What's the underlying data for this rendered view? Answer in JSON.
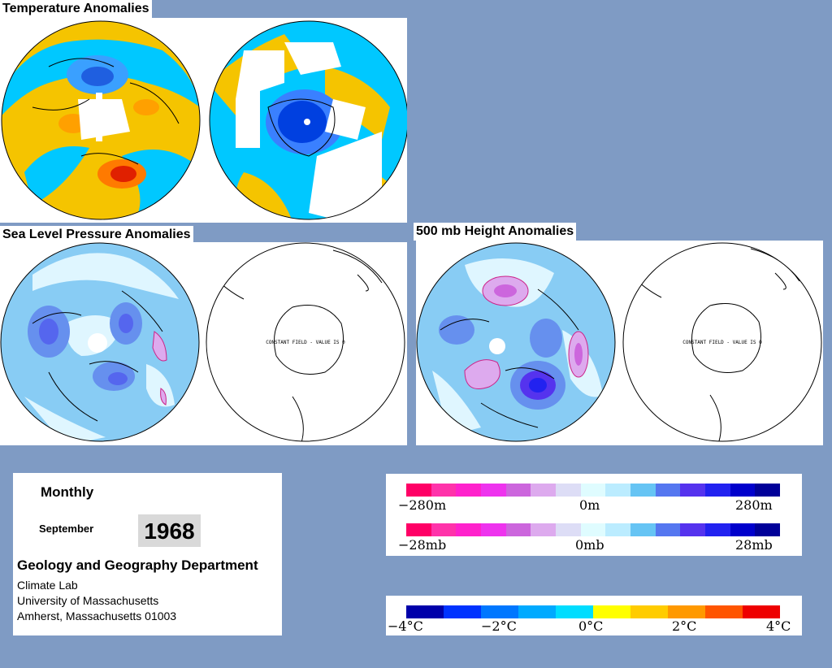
{
  "titles": {
    "temperature": "Temperature Anomalies",
    "slp": "Sea Level Pressure Anomalies",
    "height500": "500 mb Height Anomalies"
  },
  "constant_field_text": "CONSTANT FIELD - VALUE IS 0",
  "info": {
    "period": "Monthly",
    "month": "September",
    "year": "1968",
    "department": "Geology and Geography Department",
    "lab": "Climate Lab",
    "university": "University of Massachusetts",
    "address": "Amherst, Massachusetts 01003"
  },
  "legends": {
    "height": {
      "min": "−280m",
      "mid": "0m",
      "max": "280m"
    },
    "pressure": {
      "min": "−28mb",
      "mid": "0mb",
      "max": "28mb"
    },
    "temperature": {
      "labels": [
        "−4°C",
        "−2°C",
        "0°C",
        "2°C",
        "4°C"
      ]
    }
  },
  "colors": {
    "background": "#7f9bc4",
    "anomaly_scale": [
      "#ff0066",
      "#ff33aa",
      "#ff22cc",
      "#ee33ee",
      "#cc66dd",
      "#ddaaee",
      "#ddddf6",
      "#dffcff",
      "#bbecff",
      "#66c4f4",
      "#5577f0",
      "#5533ee",
      "#2222f0",
      "#0000cc",
      "#000099"
    ],
    "temperature_scale": [
      "#0000aa",
      "#0033ff",
      "#0077ff",
      "#00aaff",
      "#00ddff",
      "#ffff00",
      "#ffcc00",
      "#ff9900",
      "#ff5500",
      "#ee0000"
    ]
  }
}
